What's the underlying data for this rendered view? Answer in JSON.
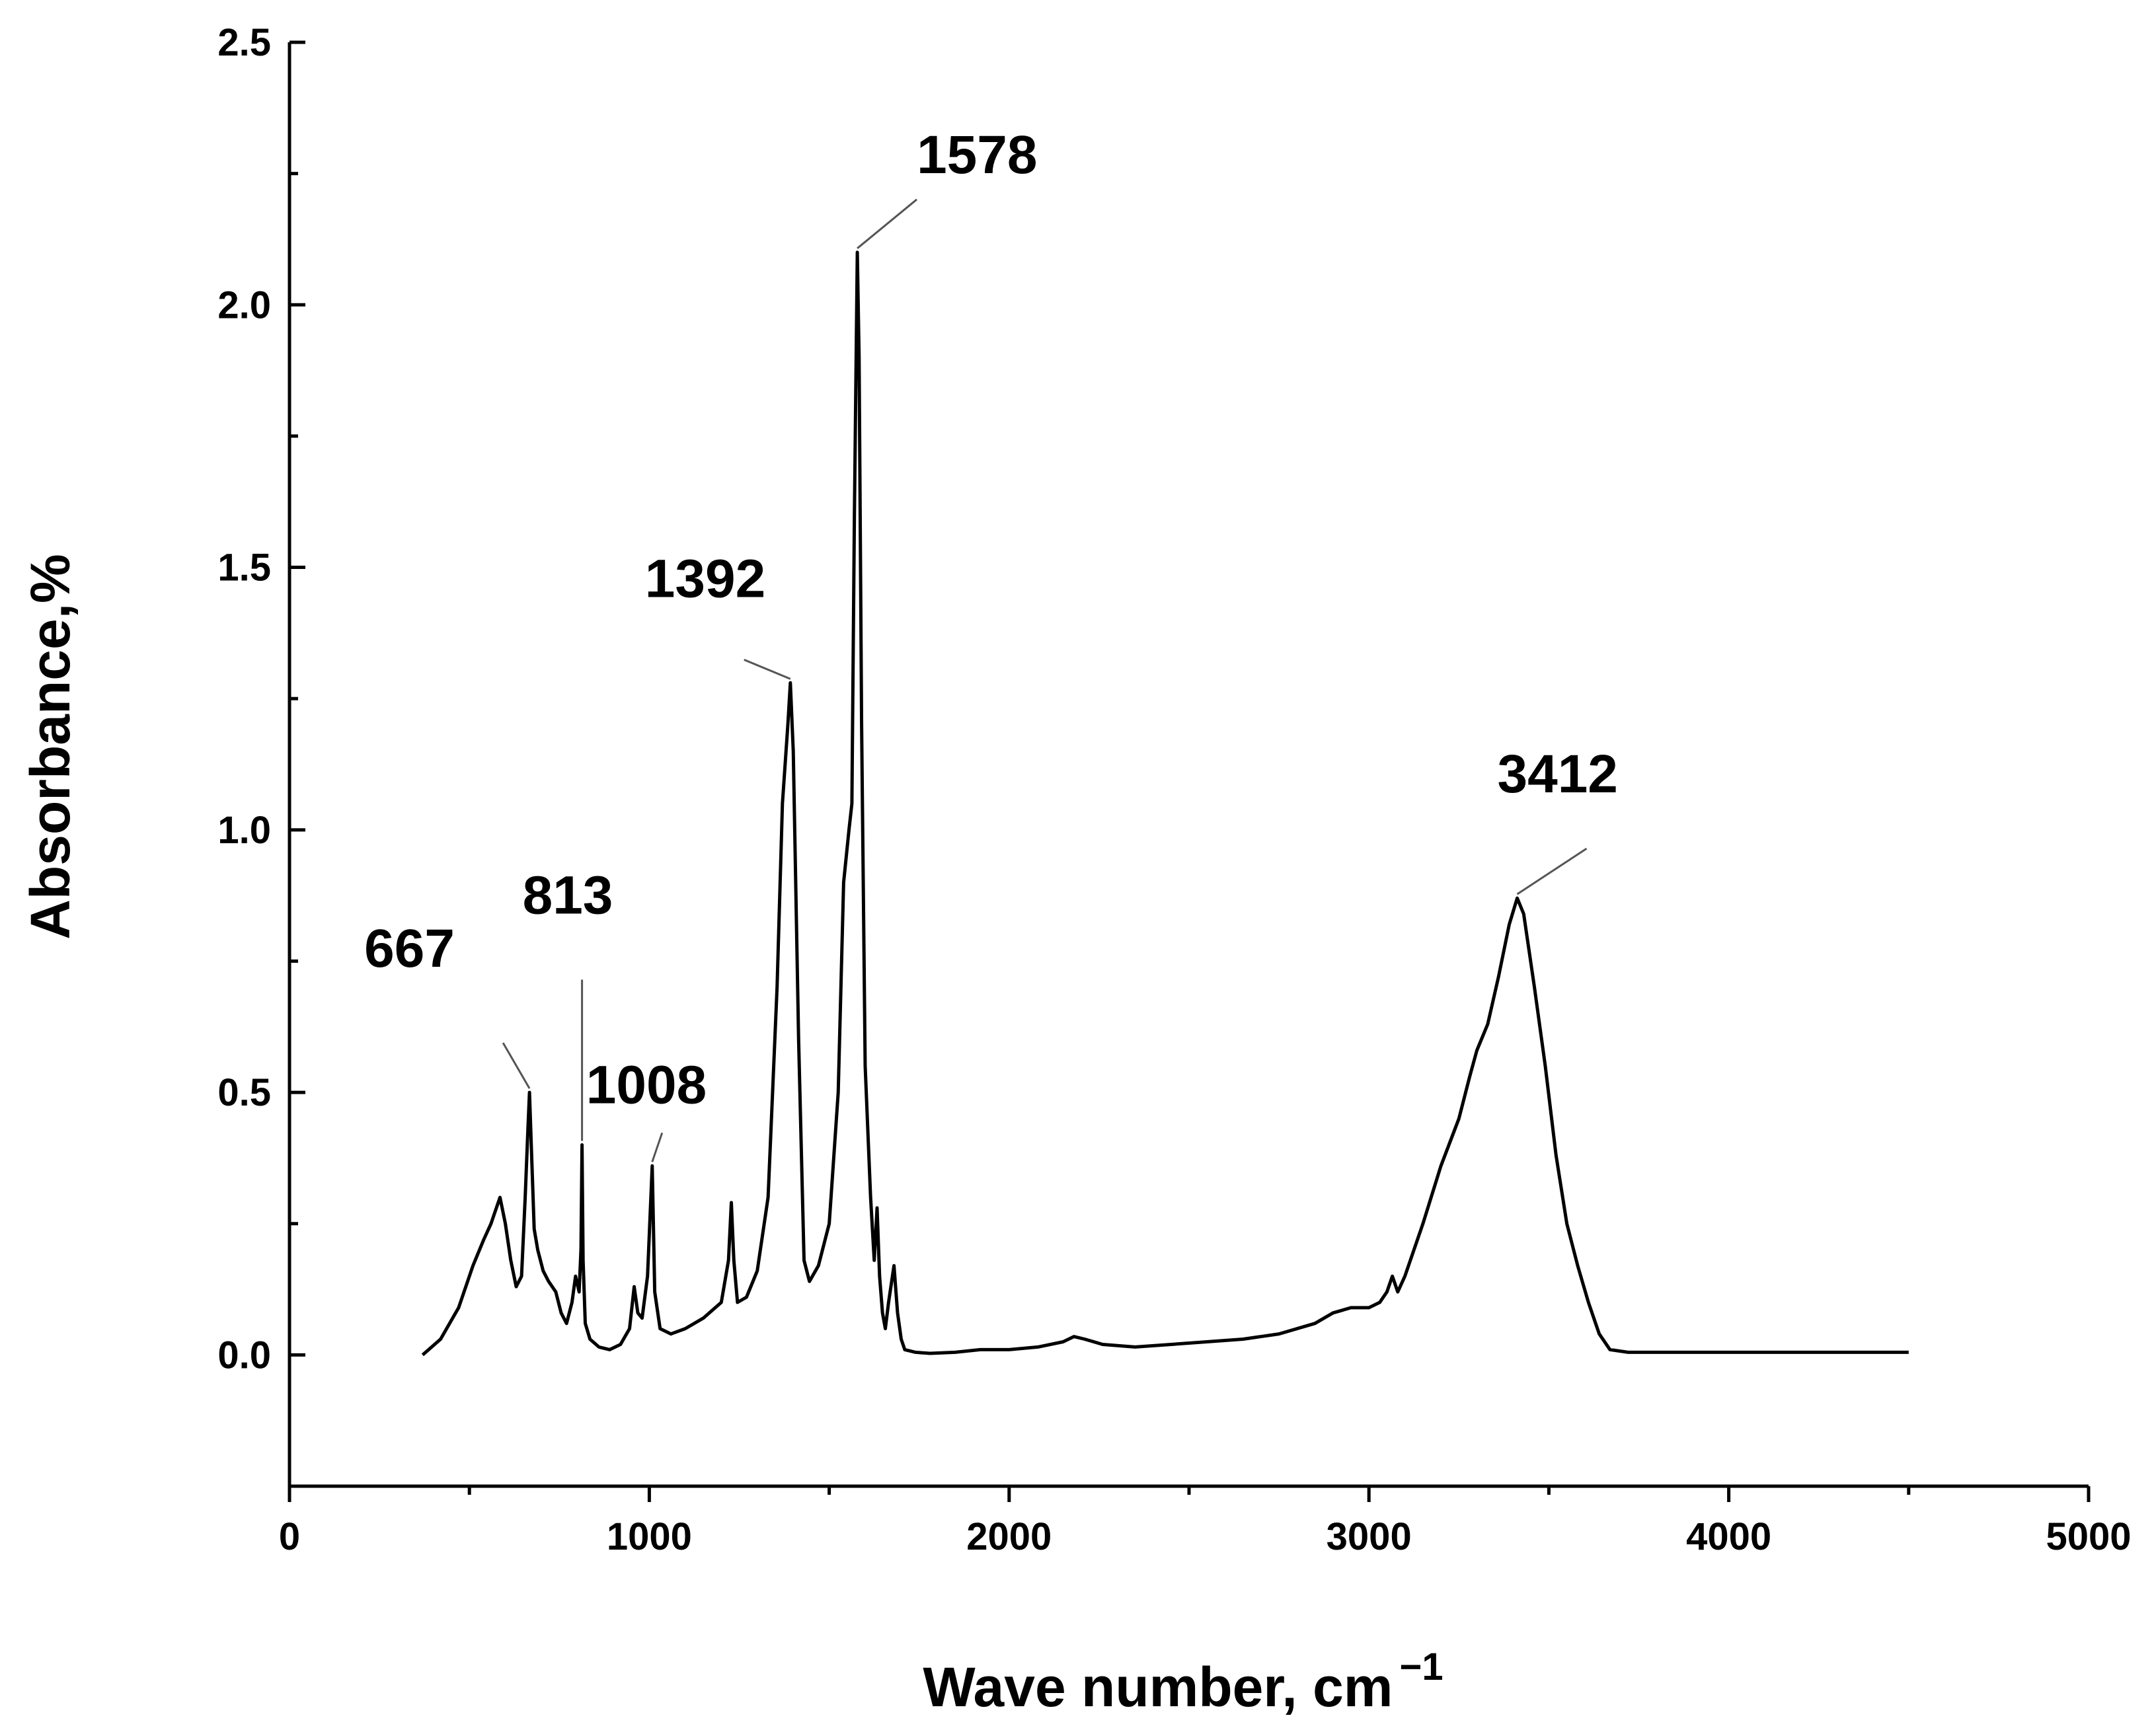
{
  "chart_data": {
    "type": "line",
    "xlabel": "Wave number, cm",
    "xlabel_superscript": "−1",
    "ylabel": "Absorbance,%",
    "xlim": [
      0,
      5000
    ],
    "ylim": [
      -0.25,
      2.5
    ],
    "x_ticks": [
      0,
      1000,
      2000,
      3000,
      4000,
      5000
    ],
    "x_tick_labels": [
      "0",
      "1000",
      "2000",
      "3000",
      "4000",
      "5000"
    ],
    "y_ticks": [
      0.0,
      0.5,
      1.0,
      1.5,
      2.0,
      2.5
    ],
    "y_tick_labels": [
      "0.0",
      "0.5",
      "1.0",
      "1.5",
      "2.0",
      "2.5"
    ],
    "grid": false,
    "series": [
      {
        "x": [
          370,
          420,
          470,
          510,
          540,
          560,
          575,
          585,
          600,
          615,
          630,
          645,
          655,
          662,
          667,
          672,
          680,
          690,
          705,
          720,
          740,
          755,
          770,
          785,
          795,
          805,
          810,
          813,
          816,
          822,
          835,
          860,
          890,
          920,
          945,
          958,
          968,
          980,
          995,
          1008,
          1015,
          1030,
          1060,
          1100,
          1150,
          1200,
          1220,
          1228,
          1235,
          1245,
          1270,
          1300,
          1330,
          1355,
          1370,
          1385,
          1392,
          1400,
          1415,
          1430,
          1445,
          1470,
          1500,
          1525,
          1540,
          1555,
          1563,
          1570,
          1578,
          1583,
          1590,
          1600,
          1615,
          1625,
          1633,
          1640,
          1648,
          1656,
          1665,
          1680,
          1690,
          1700,
          1710,
          1740,
          1780,
          1850,
          1920,
          2000,
          2080,
          2150,
          2180,
          2210,
          2260,
          2350,
          2450,
          2550,
          2650,
          2750,
          2850,
          2900,
          2950,
          3000,
          3030,
          3050,
          3065,
          3080,
          3100,
          3150,
          3200,
          3250,
          3280,
          3300,
          3330,
          3360,
          3390,
          3412,
          3430,
          3460,
          3490,
          3520,
          3550,
          3580,
          3610,
          3640,
          3670,
          3720,
          3800,
          3900,
          4000,
          4100,
          4200,
          4300,
          4400,
          4500
        ],
        "y": [
          0.0,
          0.03,
          0.09,
          0.17,
          0.22,
          0.25,
          0.28,
          0.3,
          0.25,
          0.18,
          0.13,
          0.15,
          0.3,
          0.42,
          0.5,
          0.4,
          0.24,
          0.2,
          0.16,
          0.14,
          0.12,
          0.08,
          0.06,
          0.1,
          0.15,
          0.12,
          0.2,
          0.4,
          0.18,
          0.06,
          0.03,
          0.015,
          0.01,
          0.02,
          0.05,
          0.13,
          0.08,
          0.07,
          0.15,
          0.36,
          0.12,
          0.05,
          0.04,
          0.05,
          0.07,
          0.1,
          0.18,
          0.29,
          0.18,
          0.1,
          0.11,
          0.16,
          0.3,
          0.7,
          1.05,
          1.2,
          1.28,
          1.15,
          0.6,
          0.18,
          0.14,
          0.17,
          0.25,
          0.5,
          0.9,
          1.0,
          1.05,
          1.6,
          2.1,
          1.9,
          1.2,
          0.55,
          0.3,
          0.18,
          0.28,
          0.15,
          0.08,
          0.05,
          0.1,
          0.17,
          0.08,
          0.03,
          0.01,
          0.005,
          0.003,
          0.005,
          0.01,
          0.01,
          0.015,
          0.025,
          0.035,
          0.03,
          0.02,
          0.015,
          0.02,
          0.025,
          0.03,
          0.04,
          0.06,
          0.08,
          0.09,
          0.09,
          0.1,
          0.12,
          0.15,
          0.12,
          0.15,
          0.25,
          0.36,
          0.45,
          0.53,
          0.58,
          0.63,
          0.72,
          0.82,
          0.87,
          0.84,
          0.7,
          0.55,
          0.38,
          0.25,
          0.17,
          0.1,
          0.04,
          0.01,
          0.005,
          0.005,
          0.005,
          0.005,
          0.005,
          0.005,
          0.005,
          0.005,
          0.005
        ]
      }
    ],
    "annotations": [
      {
        "text": "667",
        "x": 667,
        "y": 0.5
      },
      {
        "text": "813",
        "x": 813,
        "y": 0.4
      },
      {
        "text": "1008",
        "x": 1008,
        "y": 0.36
      },
      {
        "text": "1392",
        "x": 1392,
        "y": 1.28
      },
      {
        "text": "1578",
        "x": 1578,
        "y": 2.1
      },
      {
        "text": "3412",
        "x": 3412,
        "y": 0.87
      }
    ]
  }
}
